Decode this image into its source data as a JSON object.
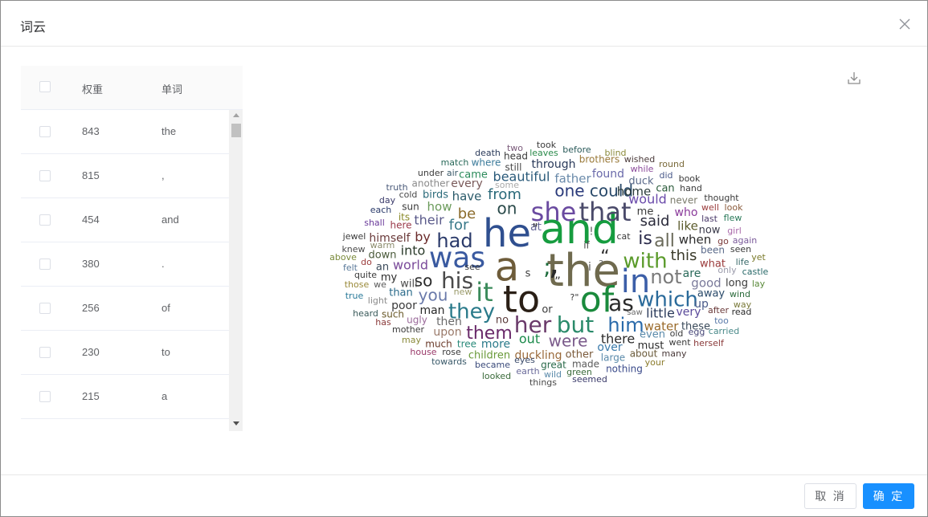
{
  "dialog": {
    "title": "词云"
  },
  "table": {
    "headers": {
      "weight": "权重",
      "word": "单词"
    },
    "rows": [
      {
        "weight": "843",
        "word": "the"
      },
      {
        "weight": "815",
        "word": ","
      },
      {
        "weight": "454",
        "word": "and"
      },
      {
        "weight": "380",
        "word": "."
      },
      {
        "weight": "256",
        "word": "of"
      },
      {
        "weight": "230",
        "word": "to"
      },
      {
        "weight": "215",
        "word": "a"
      }
    ]
  },
  "footer": {
    "cancel_label": "取 消",
    "ok_label": "确 定"
  },
  "colors": {
    "primary": "#1890ff",
    "border": "#dcdfe6",
    "text": "#606266"
  },
  "cloud_words": [
    {
      "t": "and",
      "s": 52,
      "c": "#169c3f"
    },
    {
      "t": "the",
      "s": 56,
      "c": "#6f6a4e"
    },
    {
      "t": "he",
      "s": 48,
      "c": "#2f4f8f"
    },
    {
      "t": "a",
      "s": 50,
      "c": "#6e5c3a"
    },
    {
      "t": "to",
      "s": 46,
      "c": "#2a1f16"
    },
    {
      "t": "of",
      "s": 44,
      "c": "#1a8a3c"
    },
    {
      "t": "in",
      "s": 40,
      "c": "#3c5fa8"
    },
    {
      "t": "was",
      "s": 36,
      "c": "#3a5aa0"
    },
    {
      "t": "it",
      "s": 32,
      "c": "#3a8a5a"
    },
    {
      "t": "she",
      "s": 32,
      "c": "#6a4aa0"
    },
    {
      "t": "that",
      "s": 32,
      "c": "#4a4a6a"
    },
    {
      "t": "his",
      "s": 28,
      "c": "#4a4a4a"
    },
    {
      "t": "her",
      "s": 28,
      "c": "#6a3a6a"
    },
    {
      "t": "but",
      "s": 28,
      "c": "#2a8a6a"
    },
    {
      "t": "as",
      "s": 28,
      "c": "#2a2a2a"
    },
    {
      "t": "which",
      "s": 26,
      "c": "#2a6a9a"
    },
    {
      "t": "they",
      "s": 26,
      "c": "#2a7a8a"
    },
    {
      "t": "with",
      "s": 26,
      "c": "#5a9a2a"
    },
    {
      "t": "had",
      "s": 24,
      "c": "#2a3a6a"
    },
    {
      "t": "him",
      "s": 24,
      "c": "#2a6aaa"
    },
    {
      "t": "not",
      "s": 24,
      "c": "#7a7a7a"
    },
    {
      "t": "them",
      "s": 22,
      "c": "#6a2a6a"
    },
    {
      "t": "is",
      "s": 22,
      "c": "#2a2a4a"
    },
    {
      "t": "all",
      "s": 22,
      "c": "#6a6a5a"
    },
    {
      "t": "one",
      "s": 20,
      "c": "#2a3a7a"
    },
    {
      "t": "could",
      "s": 20,
      "c": "#2a4a6a"
    },
    {
      "t": "were",
      "s": 20,
      "c": "#7a5a8a"
    },
    {
      "t": "on",
      "s": 20,
      "c": "#2a4a4a"
    },
    {
      "t": "you",
      "s": 20,
      "c": "#6a7aaa"
    },
    {
      "t": "so",
      "s": 20,
      "c": "#2a2a2a"
    },
    {
      "t": "from",
      "s": 18,
      "c": "#2a6a7a"
    },
    {
      "t": "for",
      "s": 18,
      "c": "#3a7a8a"
    },
    {
      "t": "be",
      "s": 18,
      "c": "#8a6a2a"
    },
    {
      "t": "said",
      "s": 18,
      "c": "#2a2a3a"
    },
    {
      "t": "this",
      "s": 18,
      "c": "#3a3a2a"
    },
    {
      "t": "beautiful",
      "s": 16,
      "c": "#2a5a7a"
    },
    {
      "t": "father",
      "s": 15,
      "c": "#6a8aaa"
    },
    {
      "t": "would",
      "s": 16,
      "c": "#6a4aaa"
    },
    {
      "t": "world",
      "s": 16,
      "c": "#7a4a9a"
    },
    {
      "t": "there",
      "s": 16,
      "c": "#2a2a2a"
    },
    {
      "t": "out",
      "s": 16,
      "c": "#1a8a4a"
    },
    {
      "t": "little",
      "s": 16,
      "c": "#2a3a5a"
    },
    {
      "t": "their",
      "s": 16,
      "c": "#5a5a8a"
    },
    {
      "t": "into",
      "s": 16,
      "c": "#2a3a2a"
    },
    {
      "t": "by",
      "s": 16,
      "c": "#6a2a2a"
    },
    {
      "t": "have",
      "s": 15,
      "c": "#2a5a6a"
    },
    {
      "t": "how",
      "s": 15,
      "c": "#6a9a5a"
    },
    {
      "t": "home",
      "s": 15,
      "c": "#2a3a3a"
    },
    {
      "t": "like",
      "s": 15,
      "c": "#5a5a2a"
    },
    {
      "t": "when",
      "s": 15,
      "c": "#2a2a2a"
    },
    {
      "t": "good",
      "s": 15,
      "c": "#7a7a9a"
    },
    {
      "t": "water",
      "s": 15,
      "c": "#9a6a2a"
    },
    {
      "t": "very",
      "s": 14,
      "c": "#5a4a9a"
    },
    {
      "t": "more",
      "s": 14,
      "c": "#2a7a8a"
    },
    {
      "t": "poor",
      "s": 14,
      "c": "#3a3a3a"
    },
    {
      "t": "then",
      "s": 14,
      "c": "#6a6a6a"
    },
    {
      "t": "upon",
      "s": 14,
      "c": "#9a7a6a"
    },
    {
      "t": "man",
      "s": 14,
      "c": "#2a2a2a"
    },
    {
      "t": "himself",
      "s": 14,
      "c": "#6a3a3a"
    },
    {
      "t": "found",
      "s": 14,
      "c": "#6a6aaa"
    },
    {
      "t": "every",
      "s": 14,
      "c": "#7a5a5a"
    },
    {
      "t": "came",
      "s": 13,
      "c": "#2a8a5a"
    },
    {
      "t": "birds",
      "s": 13,
      "c": "#2a6a7a"
    },
    {
      "t": "other",
      "s": 13,
      "c": "#7a5a3a"
    },
    {
      "t": "over",
      "s": 14,
      "c": "#3a7aaa"
    },
    {
      "t": "even",
      "s": 13,
      "c": "#5a8aaa"
    },
    {
      "t": "must",
      "s": 13,
      "c": "#2a2a2a"
    },
    {
      "t": "duckling",
      "s": 14,
      "c": "#9a6a3a"
    },
    {
      "t": "children",
      "s": 13,
      "c": "#6a9a3a"
    },
    {
      "t": "through",
      "s": 14,
      "c": "#2a3a5a"
    },
    {
      "t": "me",
      "s": 13,
      "c": "#3a3a3a"
    },
    {
      "t": "who",
      "s": 14,
      "c": "#8a3a9a"
    },
    {
      "t": "now",
      "s": 13,
      "c": "#3a3a4a"
    },
    {
      "t": "are",
      "s": 14,
      "c": "#2a6a5a"
    },
    {
      "t": "away",
      "s": 13,
      "c": "#2a4a6a"
    },
    {
      "t": "up",
      "s": 14,
      "c": "#4a5a8a"
    },
    {
      "t": "what",
      "s": 13,
      "c": "#9a3a3a"
    },
    {
      "t": "these",
      "s": 13,
      "c": "#3a4a5a"
    },
    {
      "t": "long",
      "s": 13,
      "c": "#3a3a3a"
    },
    {
      "t": "duck",
      "s": 13,
      "c": "#5a6a8a"
    },
    {
      "t": "can",
      "s": 13,
      "c": "#2a5a3a"
    },
    {
      "t": "never",
      "s": 12,
      "c": "#7a7a6a"
    },
    {
      "t": "will",
      "s": 13,
      "c": "#4a4a4a"
    },
    {
      "t": "down",
      "s": 13,
      "c": "#4a5a3a"
    },
    {
      "t": "than",
      "s": 13,
      "c": "#2a6a8a"
    },
    {
      "t": "an",
      "s": 13,
      "c": "#3a4a5a"
    },
    {
      "t": "my",
      "s": 13,
      "c": "#2a2a2a"
    },
    {
      "t": "no",
      "s": 13,
      "c": "#5a3a3a"
    },
    {
      "t": "or",
      "s": 13,
      "c": "#3a3a3a"
    },
    {
      "t": "at",
      "s": 14,
      "c": "#6a6a9a"
    },
    {
      "t": "its",
      "s": 12,
      "c": "#8a8a2a"
    },
    {
      "t": "sun",
      "s": 12,
      "c": "#3a3a3a"
    },
    {
      "t": "here",
      "s": 12,
      "c": "#9a3a4a"
    },
    {
      "t": "ugly",
      "s": 12,
      "c": "#9a6a9a"
    },
    {
      "t": "such",
      "s": 12,
      "c": "#6a5a2a"
    },
    {
      "t": "much",
      "s": 12,
      "c": "#6a3a2a"
    },
    {
      "t": "tree",
      "s": 12,
      "c": "#2a8a7a"
    },
    {
      "t": "large",
      "s": 12,
      "c": "#5a8aaa"
    },
    {
      "t": "about",
      "s": 12,
      "c": "#6a5a3a"
    },
    {
      "t": "many",
      "s": 11,
      "c": "#4a3a3a"
    },
    {
      "t": "great",
      "s": 12,
      "c": "#2a6a4a"
    },
    {
      "t": "made",
      "s": 12,
      "c": "#5a5a5a"
    },
    {
      "t": "nothing",
      "s": 12,
      "c": "#3a4a8a"
    },
    {
      "t": "under",
      "s": 11,
      "c": "#3a3a3a"
    },
    {
      "t": "air",
      "s": 11,
      "c": "#3a5a6a"
    },
    {
      "t": "another",
      "s": 12,
      "c": "#8a8a8a"
    },
    {
      "t": "still",
      "s": 12,
      "c": "#4a4a4a"
    },
    {
      "t": "some",
      "s": 11,
      "c": "#aaaaaa"
    },
    {
      "t": "head",
      "s": 12,
      "c": "#3a3a3a"
    },
    {
      "t": "match",
      "s": 11,
      "c": "#2a6a5a"
    },
    {
      "t": "where",
      "s": 12,
      "c": "#3a7a9a"
    },
    {
      "t": "death",
      "s": 11,
      "c": "#2a3a5a"
    },
    {
      "t": "two",
      "s": 11,
      "c": "#7a5a7a"
    },
    {
      "t": "took",
      "s": 11,
      "c": "#3a3a3a"
    },
    {
      "t": "leaves",
      "s": 11,
      "c": "#2a8a4a"
    },
    {
      "t": "before",
      "s": 11,
      "c": "#2a5a5a"
    },
    {
      "t": "blind",
      "s": 11,
      "c": "#8a8a3a"
    },
    {
      "t": "brothers",
      "s": 12,
      "c": "#9a7a3a"
    },
    {
      "t": "wished",
      "s": 11,
      "c": "#4a3a3a"
    },
    {
      "t": "while",
      "s": 11,
      "c": "#8a4a9a"
    },
    {
      "t": "round",
      "s": 11,
      "c": "#7a6a3a"
    },
    {
      "t": "did",
      "s": 11,
      "c": "#4a5a8a"
    },
    {
      "t": "book",
      "s": 11,
      "c": "#3a3a3a"
    },
    {
      "t": "hand",
      "s": 11,
      "c": "#3a3a3a"
    },
    {
      "t": "thought",
      "s": 11,
      "c": "#3a3a3a"
    },
    {
      "t": "well",
      "s": 11,
      "c": "#9a3a3a"
    },
    {
      "t": "look",
      "s": 11,
      "c": "#8a5a3a"
    },
    {
      "t": "last",
      "s": 11,
      "c": "#4a3a6a"
    },
    {
      "t": "flew",
      "s": 11,
      "c": "#2a7a5a"
    },
    {
      "t": "girl",
      "s": 11,
      "c": "#aa6aaa"
    },
    {
      "t": "go",
      "s": 11,
      "c": "#7a3a3a"
    },
    {
      "t": "again",
      "s": 11,
      "c": "#7a5a9a"
    },
    {
      "t": "been",
      "s": 12,
      "c": "#5a6a8a"
    },
    {
      "t": "seen",
      "s": 11,
      "c": "#3a3a3a"
    },
    {
      "t": "yet",
      "s": 11,
      "c": "#7a7a2a"
    },
    {
      "t": "life",
      "s": 11,
      "c": "#3a6a6a"
    },
    {
      "t": "castle",
      "s": 11,
      "c": "#2a6a6a"
    },
    {
      "t": "only",
      "s": 11,
      "c": "#9a9aaa"
    },
    {
      "t": "lay",
      "s": 11,
      "c": "#5a8a3a"
    },
    {
      "t": "wind",
      "s": 11,
      "c": "#2a6a3a"
    },
    {
      "t": "way",
      "s": 11,
      "c": "#7a7a3a"
    },
    {
      "t": "after",
      "s": 11,
      "c": "#6a3a3a"
    },
    {
      "t": "read",
      "s": 11,
      "c": "#2a2a2a"
    },
    {
      "t": "too",
      "s": 11,
      "c": "#5a7aaa"
    },
    {
      "t": "old",
      "s": 11,
      "c": "#3a3a3a"
    },
    {
      "t": "egg",
      "s": 11,
      "c": "#4a4a7a"
    },
    {
      "t": "carried",
      "s": 11,
      "c": "#4a8a8a"
    },
    {
      "t": "went",
      "s": 11,
      "c": "#3a3a3a"
    },
    {
      "t": "herself",
      "s": 11,
      "c": "#8a3a3a"
    },
    {
      "t": "your",
      "s": 11,
      "c": "#8a7a2a"
    },
    {
      "t": "seemed",
      "s": 11,
      "c": "#3a3a6a"
    },
    {
      "t": "green",
      "s": 11,
      "c": "#3a6a3a"
    },
    {
      "t": "wild",
      "s": 11,
      "c": "#5a8aaa"
    },
    {
      "t": "earth",
      "s": 11,
      "c": "#6a6a9a"
    },
    {
      "t": "things",
      "s": 11,
      "c": "#4a4a4a"
    },
    {
      "t": "eyes",
      "s": 11,
      "c": "#3a4a6a"
    },
    {
      "t": "looked",
      "s": 11,
      "c": "#3a6a3a"
    },
    {
      "t": "became",
      "s": 11,
      "c": "#3a4a7a"
    },
    {
      "t": "towards",
      "s": 11,
      "c": "#3a5a6a"
    },
    {
      "t": "rose",
      "s": 11,
      "c": "#3a3a3a"
    },
    {
      "t": "house",
      "s": 11,
      "c": "#9a3a6a"
    },
    {
      "t": "may",
      "s": 11,
      "c": "#8a8a3a"
    },
    {
      "t": "mother",
      "s": 11,
      "c": "#3a3a3a"
    },
    {
      "t": "has",
      "s": 11,
      "c": "#8a3a3a"
    },
    {
      "t": "heard",
      "s": 11,
      "c": "#3a5a5a"
    },
    {
      "t": "light",
      "s": 11,
      "c": "#8a8a8a"
    },
    {
      "t": "true",
      "s": 11,
      "c": "#2a7a9a"
    },
    {
      "t": "those",
      "s": 11,
      "c": "#9a8a3a"
    },
    {
      "t": "quite",
      "s": 11,
      "c": "#3a3a3a"
    },
    {
      "t": "we",
      "s": 11,
      "c": "#5a5a5a"
    },
    {
      "t": "felt",
      "s": 11,
      "c": "#5a7a9a"
    },
    {
      "t": "do",
      "s": 11,
      "c": "#9a3a3a"
    },
    {
      "t": "above",
      "s": 11,
      "c": "#7a8a3a"
    },
    {
      "t": "knew",
      "s": 11,
      "c": "#4a4a4a"
    },
    {
      "t": "warm",
      "s": 11,
      "c": "#8a8a6a"
    },
    {
      "t": "jewel",
      "s": 11,
      "c": "#3a3a3a"
    },
    {
      "t": "shall",
      "s": 11,
      "c": "#6a3a9a"
    },
    {
      "t": "each",
      "s": 11,
      "c": "#2a3a6a"
    },
    {
      "t": "day",
      "s": 11,
      "c": "#3a3a6a"
    },
    {
      "t": "cold",
      "s": 11,
      "c": "#4a4a4a"
    },
    {
      "t": "truth",
      "s": 11,
      "c": "#4a5a7a"
    },
    {
      "t": "see",
      "s": 11,
      "c": "#3a3a3a"
    },
    {
      "t": "new",
      "s": 11,
      "c": "#9a9a6a"
    },
    {
      "t": "saw",
      "s": 10,
      "c": "#6a6a6a"
    },
    {
      "t": "if",
      "s": 12,
      "c": "#4a4a4a"
    },
    {
      "t": "cat",
      "s": 11,
      "c": "#3a3a3a"
    },
    {
      "t": "?\"",
      "s": 11,
      "c": "#3a3a3a"
    },
    {
      "t": "\"",
      "s": 16,
      "c": "#3a3a3a"
    },
    {
      "t": "’",
      "s": 44,
      "c": "#2a2a2a"
    },
    {
      "t": "“",
      "s": 22,
      "c": "#2a2a2a"
    },
    {
      "t": "!",
      "s": 13,
      "c": "#5a5a5a"
    },
    {
      "t": ";",
      "s": 28,
      "c": "#1a6a3a"
    },
    {
      "t": "?",
      "s": 11,
      "c": "#6a6a6a"
    },
    {
      "t": "s",
      "s": 13,
      "c": "#3a3a3a"
    },
    {
      "t": "i",
      "s": 14,
      "c": "#5a5a5a"
    },
    {
      "t": "”",
      "s": 15,
      "c": "#3a3a3a"
    }
  ]
}
